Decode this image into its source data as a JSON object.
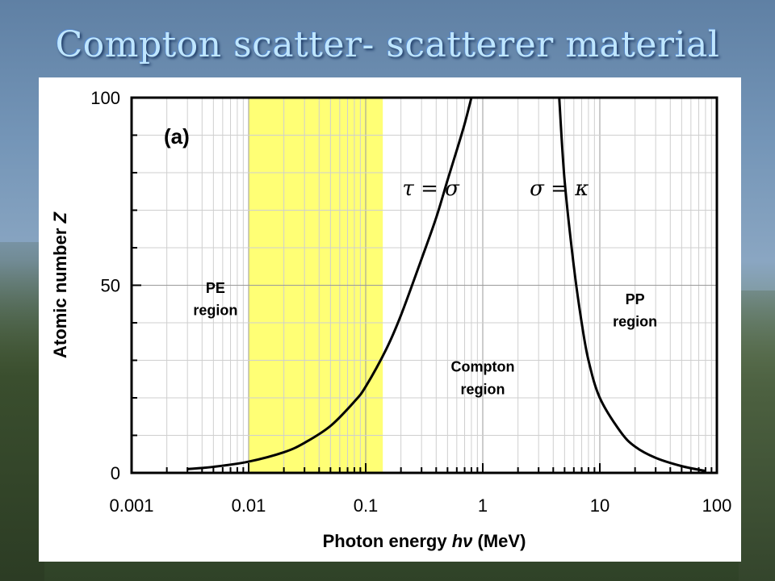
{
  "slide": {
    "title": "Compton scatter- scatterer material"
  },
  "colors": {
    "highlight": "#ffff66",
    "curve": "#000000",
    "title_text": "#bfe6ff"
  },
  "chart_data": {
    "type": "line",
    "panel_label": "(a)",
    "xlabel": "Photon energy hν (MeV)",
    "ylabel": "Atomic number Z",
    "xscale": "log",
    "xlim": [
      0.001,
      100
    ],
    "ylim": [
      0,
      100
    ],
    "x_ticks": [
      "0.001",
      "0.01",
      "0.1",
      "1",
      "10",
      "100"
    ],
    "y_ticks": [
      "0",
      "50",
      "100"
    ],
    "grid": true,
    "highlight_band": {
      "x": [
        0.01,
        0.14
      ]
    },
    "series": [
      {
        "name": "τ = σ",
        "points": [
          [
            0.003,
            1
          ],
          [
            0.005,
            1.6
          ],
          [
            0.01,
            3
          ],
          [
            0.02,
            5.5
          ],
          [
            0.03,
            8
          ],
          [
            0.05,
            12.5
          ],
          [
            0.08,
            19
          ],
          [
            0.1,
            23
          ],
          [
            0.15,
            33
          ],
          [
            0.2,
            42
          ],
          [
            0.3,
            57
          ],
          [
            0.4,
            68
          ],
          [
            0.5,
            78
          ],
          [
            0.6,
            86
          ],
          [
            0.7,
            93
          ],
          [
            0.8,
            100
          ]
        ]
      },
      {
        "name": "σ = κ",
        "points": [
          [
            4.5,
            100
          ],
          [
            5,
            78
          ],
          [
            6,
            55
          ],
          [
            7,
            40
          ],
          [
            8,
            30
          ],
          [
            10,
            20
          ],
          [
            15,
            11
          ],
          [
            20,
            7
          ],
          [
            30,
            4
          ],
          [
            50,
            1.8
          ],
          [
            80,
            0.5
          ]
        ]
      }
    ],
    "annotations": [
      {
        "text": "τ = σ",
        "x": 0.36,
        "y": 74
      },
      {
        "text": "σ = κ",
        "x": 4.5,
        "y": 74
      },
      {
        "text": "PE",
        "x": 0.0052,
        "y": 48
      },
      {
        "text": "region",
        "x": 0.0052,
        "y": 42
      },
      {
        "text": "Compton",
        "x": 1.0,
        "y": 27
      },
      {
        "text": "region",
        "x": 1.0,
        "y": 21
      },
      {
        "text": "PP",
        "x": 20,
        "y": 45
      },
      {
        "text": "region",
        "x": 20,
        "y": 39
      }
    ]
  }
}
